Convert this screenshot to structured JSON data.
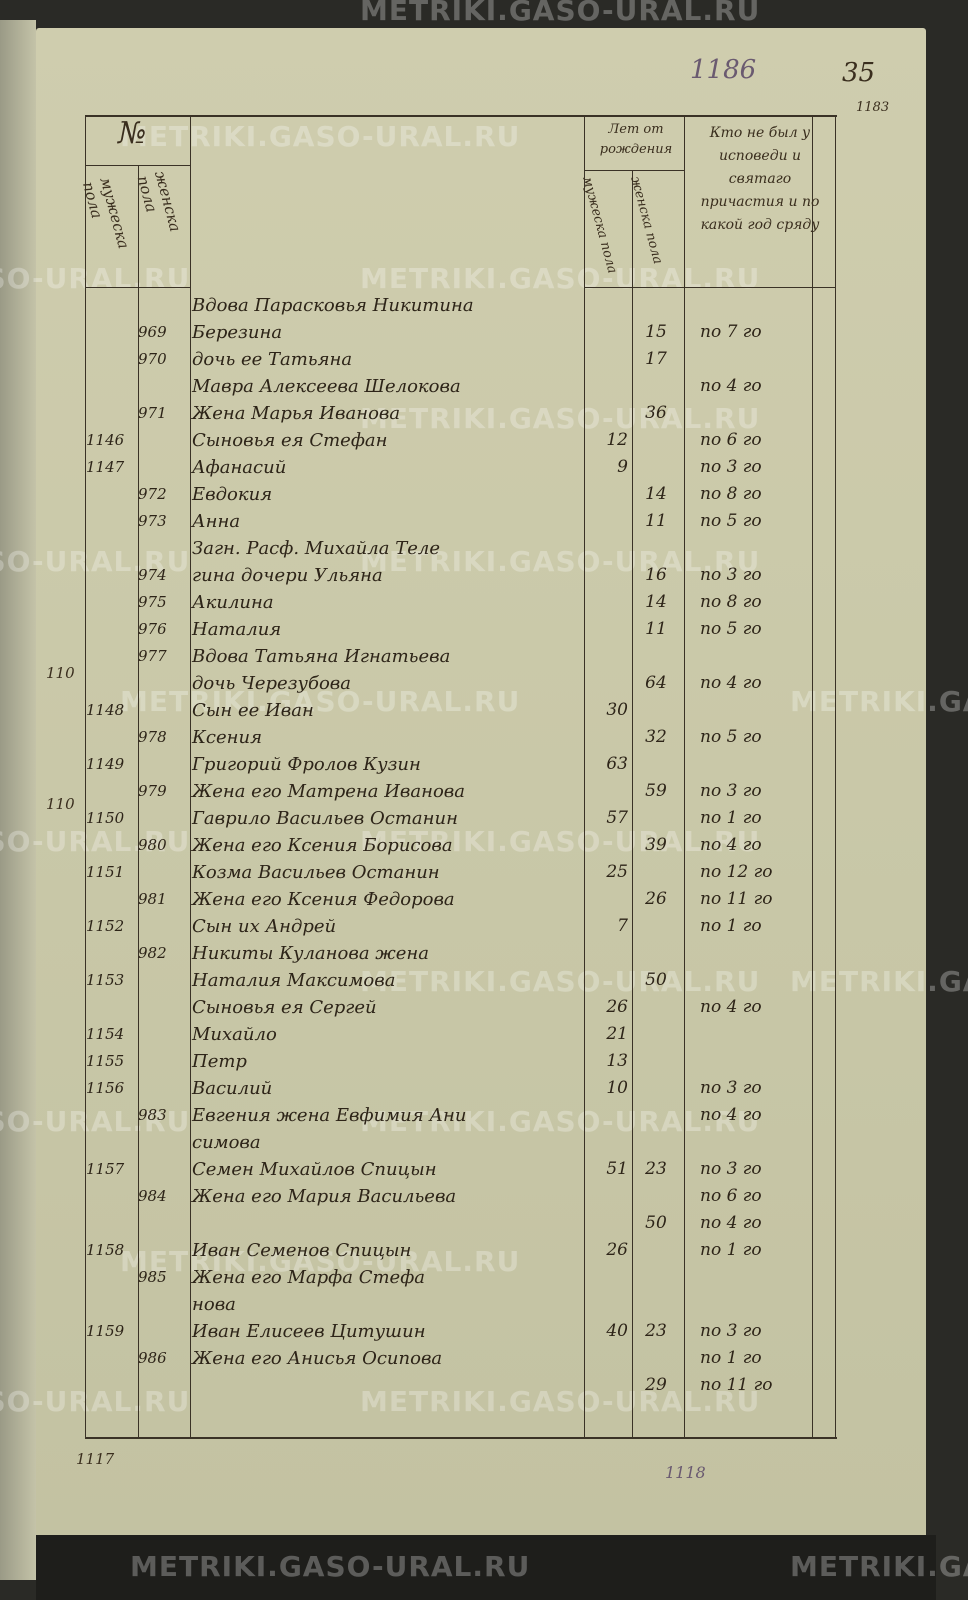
{
  "watermark": "METRIKI.GASO-URAL.RU",
  "page_numbers": {
    "archive_number": "1186",
    "folio": "35",
    "old_folio": "1183",
    "footer_left": "1117",
    "footer_right": "1118"
  },
  "margin_notes": [
    "110",
    "110"
  ],
  "header": {
    "number_label": "№",
    "number_male": "мужеска пола",
    "number_female": "женска пола",
    "age_label": "Лет от рождения",
    "age_male": "мужеска пола",
    "age_female": "женска пола",
    "confession_label": "Кто не был у исповеди и святаго причастия и по какой год сряду"
  },
  "rows": [
    {
      "male_no": "",
      "female_no": "",
      "text": "Вдова Парасковья Никитина",
      "male_age": "",
      "female_age": "",
      "confession": ""
    },
    {
      "male_no": "",
      "female_no": "969",
      "text": "Березина",
      "male_age": "",
      "female_age": "15",
      "confession": "по 7 го"
    },
    {
      "male_no": "",
      "female_no": "970",
      "text": "дочь ее Татьяна",
      "male_age": "",
      "female_age": "17",
      "confession": ""
    },
    {
      "male_no": "",
      "female_no": "",
      "text": "Мавра Алексеева Шелокова",
      "male_age": "",
      "female_age": "",
      "confession": "по 4 го"
    },
    {
      "male_no": "",
      "female_no": "971",
      "text": "Жена Марья Иванова",
      "male_age": "",
      "female_age": "36",
      "confession": ""
    },
    {
      "male_no": "1146",
      "female_no": "",
      "text": "Сыновья ея Стефан",
      "male_age": "12",
      "female_age": "",
      "confession": "по 6 го"
    },
    {
      "male_no": "1147",
      "female_no": "",
      "text": "Афанасий",
      "male_age": "9",
      "female_age": "",
      "confession": "по 3 го"
    },
    {
      "male_no": "",
      "female_no": "972",
      "text": "Евдокия",
      "male_age": "",
      "female_age": "14",
      "confession": "по 8 го"
    },
    {
      "male_no": "",
      "female_no": "973",
      "text": "Анна",
      "male_age": "",
      "female_age": "11",
      "confession": "по 5 го"
    },
    {
      "male_no": "",
      "female_no": "",
      "text": "Загн. Расф. Михайла Теле",
      "male_age": "",
      "female_age": "",
      "confession": ""
    },
    {
      "male_no": "",
      "female_no": "974",
      "text": "гина дочери Ульяна",
      "male_age": "",
      "female_age": "16",
      "confession": "по 3 го"
    },
    {
      "male_no": "",
      "female_no": "975",
      "text": "Акилина",
      "male_age": "",
      "female_age": "14",
      "confession": "по 8 го"
    },
    {
      "male_no": "",
      "female_no": "976",
      "text": "Наталия",
      "male_age": "",
      "female_age": "11",
      "confession": "по 5 го"
    },
    {
      "male_no": "",
      "female_no": "977",
      "text": "Вдова Татьяна Игнатьева",
      "male_age": "",
      "female_age": "",
      "confession": ""
    },
    {
      "male_no": "",
      "female_no": "",
      "text": "дочь Черезубова",
      "male_age": "",
      "female_age": "64",
      "confession": "по 4 го"
    },
    {
      "male_no": "1148",
      "female_no": "",
      "text": "Сын ее Иван",
      "male_age": "30",
      "female_age": "",
      "confession": ""
    },
    {
      "male_no": "",
      "female_no": "978",
      "text": "Ксения",
      "male_age": "",
      "female_age": "32",
      "confession": "по 5 го"
    },
    {
      "male_no": "1149",
      "female_no": "",
      "text": "Григорий Фролов Кузин",
      "male_age": "63",
      "female_age": "",
      "confession": ""
    },
    {
      "male_no": "",
      "female_no": "979",
      "text": "Жена его Матрена Иванова",
      "male_age": "",
      "female_age": "59",
      "confession": "по 3 го"
    },
    {
      "male_no": "1150",
      "female_no": "",
      "text": "Гаврило Васильев Останин",
      "male_age": "57",
      "female_age": "",
      "confession": "по 1 го"
    },
    {
      "male_no": "",
      "female_no": "980",
      "text": "Жена его Ксения Борисова",
      "male_age": "",
      "female_age": "39",
      "confession": "по 4 го"
    },
    {
      "male_no": "1151",
      "female_no": "",
      "text": "Козма Васильев Останин",
      "male_age": "25",
      "female_age": "",
      "confession": "по 12 го"
    },
    {
      "male_no": "",
      "female_no": "981",
      "text": "Жена его Ксения Федорова",
      "male_age": "",
      "female_age": "26",
      "confession": "по 11 го"
    },
    {
      "male_no": "1152",
      "female_no": "",
      "text": "Сын их Андрей",
      "male_age": "7",
      "female_age": "",
      "confession": "по 1 го"
    },
    {
      "male_no": "",
      "female_no": "982",
      "text": "Никиты Куланова жена",
      "male_age": "",
      "female_age": "",
      "confession": ""
    },
    {
      "male_no": "1153",
      "female_no": "",
      "text": "Наталия Максимова",
      "male_age": "",
      "female_age": "50",
      "confession": ""
    },
    {
      "male_no": "",
      "female_no": "",
      "text": "Сыновья ея Сергей",
      "male_age": "26",
      "female_age": "",
      "confession": "по 4 го"
    },
    {
      "male_no": "1154",
      "female_no": "",
      "text": "Михайло",
      "male_age": "21",
      "female_age": "",
      "confession": ""
    },
    {
      "male_no": "1155",
      "female_no": "",
      "text": "Петр",
      "male_age": "13",
      "female_age": "",
      "confession": ""
    },
    {
      "male_no": "1156",
      "female_no": "",
      "text": "Василий",
      "male_age": "10",
      "female_age": "",
      "confession": "по 3 го"
    },
    {
      "male_no": "",
      "female_no": "983",
      "text": "Евгения жена Евфимия Ани",
      "male_age": "",
      "female_age": "",
      "confession": "по 4 го"
    },
    {
      "male_no": "",
      "female_no": "",
      "text": "симова",
      "male_age": "",
      "female_age": "",
      "confession": ""
    },
    {
      "male_no": "1157",
      "female_no": "",
      "text": "Семен Михайлов Спицын",
      "male_age": "51",
      "female_age": "23",
      "confession": "по 3 го"
    },
    {
      "male_no": "",
      "female_no": "984",
      "text": "Жена его Мария Васильева",
      "male_age": "",
      "female_age": "",
      "confession": "по 6 го"
    },
    {
      "male_no": "",
      "female_no": "",
      "text": "",
      "male_age": "",
      "female_age": "50",
      "confession": "по 4 го"
    },
    {
      "male_no": "1158",
      "female_no": "",
      "text": "Иван Семенов Спицын",
      "male_age": "26",
      "female_age": "",
      "confession": "по 1 го"
    },
    {
      "male_no": "",
      "female_no": "985",
      "text": "Жена его Марфа Стефа",
      "male_age": "",
      "female_age": "",
      "confession": ""
    },
    {
      "male_no": "",
      "female_no": "",
      "text": "нова",
      "male_age": "",
      "female_age": "",
      "confession": ""
    },
    {
      "male_no": "1159",
      "female_no": "",
      "text": "Иван Елисеев Цитушин",
      "male_age": "40",
      "female_age": "23",
      "confession": "по 3 го"
    },
    {
      "male_no": "",
      "female_no": "986",
      "text": "Жена его Анисья Осипова",
      "male_age": "",
      "female_age": "",
      "confession": "по 1 го"
    },
    {
      "male_no": "",
      "female_no": "",
      "text": "",
      "male_age": "",
      "female_age": "29",
      "confession": "по 11 го"
    }
  ]
}
